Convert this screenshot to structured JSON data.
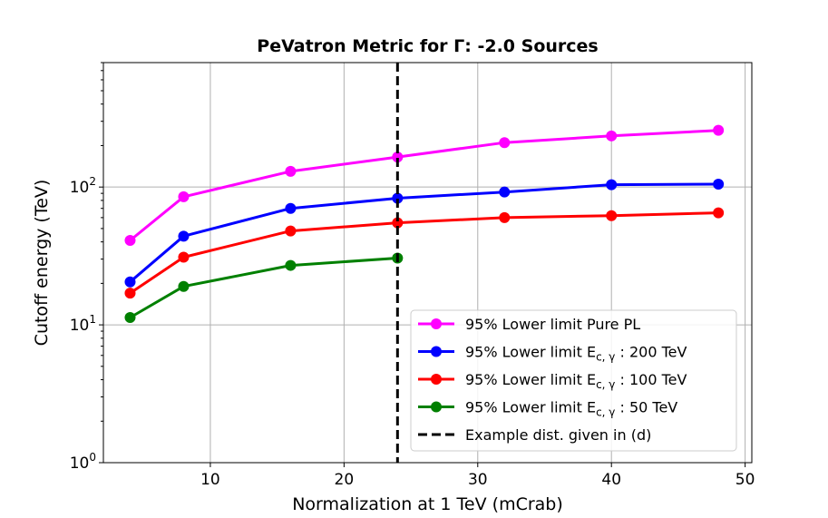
{
  "chart_data": {
    "type": "line",
    "title": "PeVatron Metric for Γ: -2.0 Sources",
    "xlabel": "Normalization at 1 TeV (mCrab)",
    "ylabel": "Cutoff energy (TeV)",
    "xscale": "linear",
    "yscale": "log",
    "xlim": [
      2,
      50.5
    ],
    "ylim": [
      1,
      800
    ],
    "grid": true,
    "x_ticks": [
      {
        "value": 10,
        "label": "10"
      },
      {
        "value": 20,
        "label": "20"
      },
      {
        "value": 30,
        "label": "30"
      },
      {
        "value": 40,
        "label": "40"
      },
      {
        "value": 50,
        "label": "50"
      }
    ],
    "y_ticks": [
      {
        "value": 1,
        "base": "10",
        "exp": "0"
      },
      {
        "value": 10,
        "base": "10",
        "exp": "1"
      },
      {
        "value": 100,
        "base": "10",
        "exp": "2"
      }
    ],
    "series": [
      {
        "key": "pure-pl",
        "name": "95% Lower limit Pure PL",
        "color": "#ff00ff",
        "x": [
          4,
          8,
          16,
          24,
          32,
          40,
          48
        ],
        "values": [
          41,
          85,
          130,
          165,
          210,
          235,
          258
        ]
      },
      {
        "key": "ec-200",
        "name": "95% Lower limit E",
        "sub": "c, γ",
        "suffix": " : 200 TeV",
        "color": "#0000ff",
        "x": [
          4,
          8,
          16,
          24,
          32,
          40,
          48
        ],
        "values": [
          20.5,
          44,
          70,
          83,
          92,
          104,
          105
        ]
      },
      {
        "key": "ec-100",
        "name": "95% Lower limit E",
        "sub": "c, γ",
        "suffix": " : 100 TeV",
        "color": "#ff0000",
        "x": [
          4,
          8,
          16,
          24,
          32,
          40,
          48
        ],
        "values": [
          17,
          31,
          48,
          55,
          60,
          62,
          65
        ]
      },
      {
        "key": "ec-50",
        "name": "95% Lower limit E",
        "sub": "c, γ",
        "suffix": " : 50 TeV",
        "color": "#008000",
        "x": [
          4,
          8,
          16,
          24
        ],
        "values": [
          11.3,
          19,
          27,
          30.5
        ]
      }
    ],
    "vline": {
      "x": 24,
      "name": "Example dist. given in (d)",
      "color": "#000000",
      "style": "dashed"
    },
    "legend_position": "lower-right"
  }
}
